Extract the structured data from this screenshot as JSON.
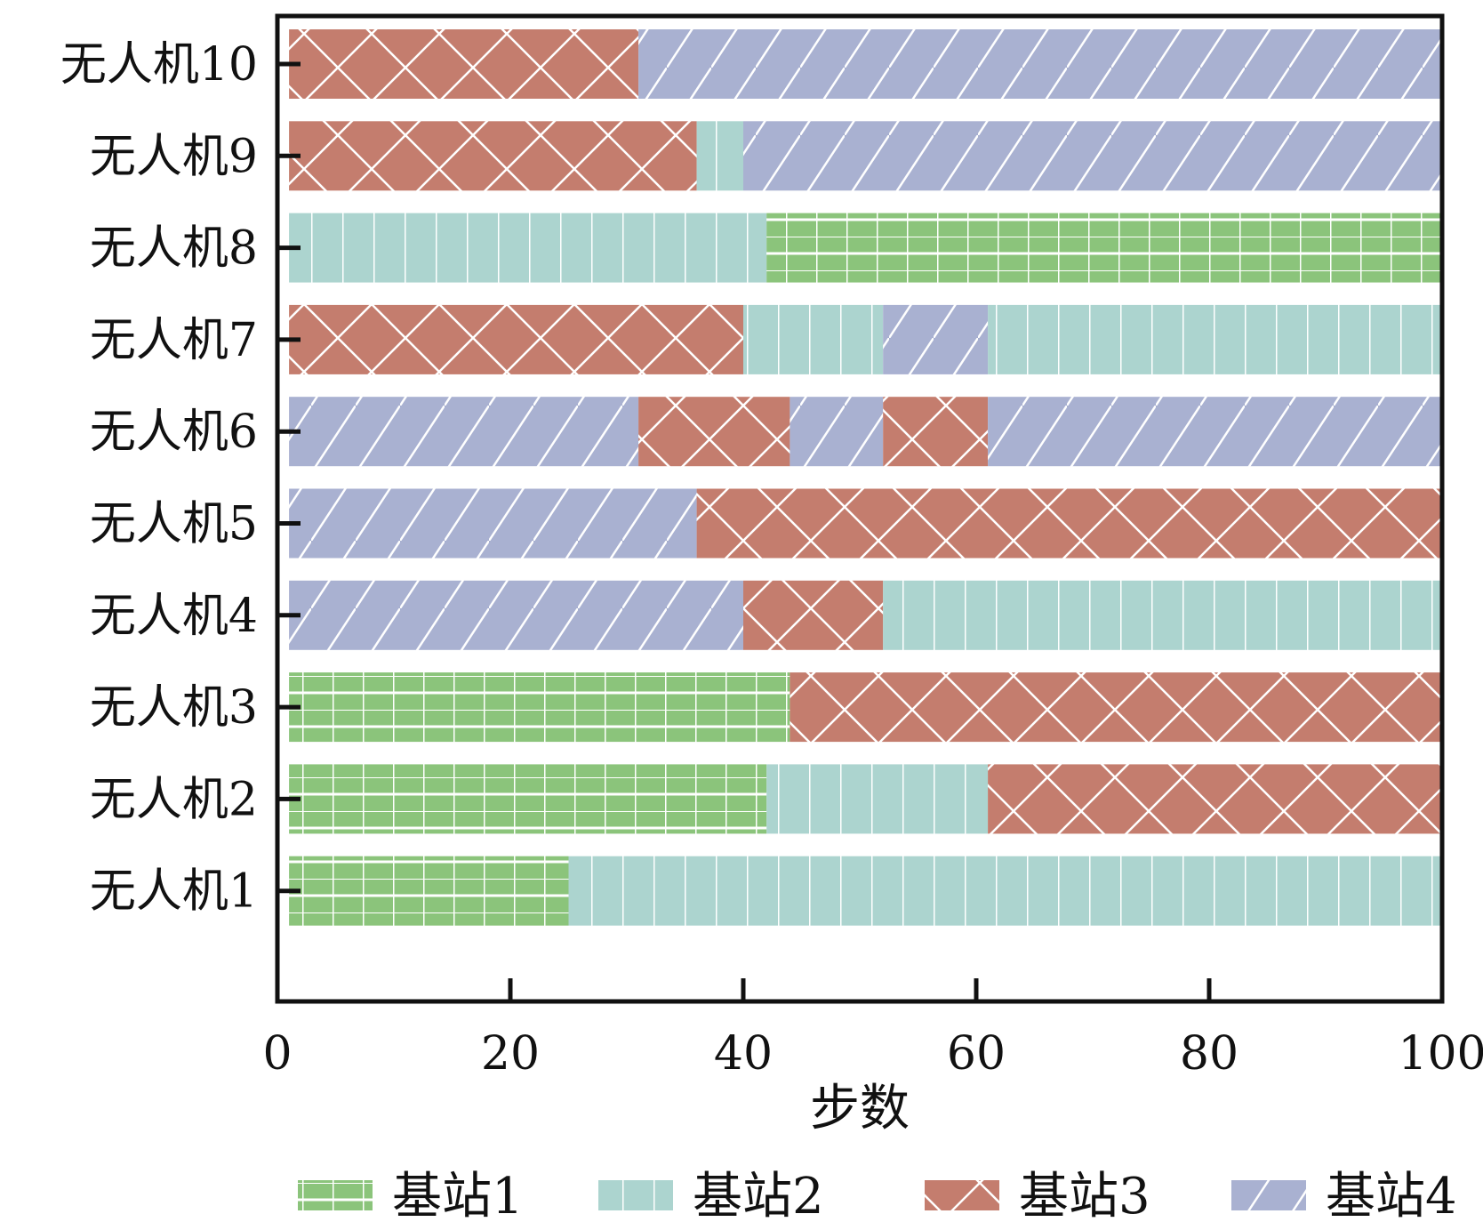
{
  "chart_data": {
    "type": "bar",
    "orientation": "horizontal-stacked",
    "xlabel": "步数",
    "ylabel": "",
    "xlim": [
      0,
      100
    ],
    "xticks": [
      0,
      20,
      40,
      60,
      80,
      100
    ],
    "xtick_labels": [
      "0",
      "20",
      "40",
      "60",
      "80",
      "100"
    ],
    "categories": [
      "无人机1",
      "无人机2",
      "无人机3",
      "无人机4",
      "无人机5",
      "无人机6",
      "无人机7",
      "无人机8",
      "无人机9",
      "无人机10"
    ],
    "series": [
      {
        "name": "基站1",
        "color": "#8bc47b",
        "pattern": "grid"
      },
      {
        "name": "基站2",
        "color": "#acd4cf",
        "pattern": "vertical"
      },
      {
        "name": "基站3",
        "color": "#c47d6e",
        "pattern": "cross"
      },
      {
        "name": "基站4",
        "color": "#a9b1d1",
        "pattern": "diagonal"
      }
    ],
    "segments": [
      [
        {
          "station": "基站1",
          "start": 1,
          "end": 25
        },
        {
          "station": "基站2",
          "start": 25,
          "end": 100
        }
      ],
      [
        {
          "station": "基站1",
          "start": 1,
          "end": 42
        },
        {
          "station": "基站2",
          "start": 42,
          "end": 61
        },
        {
          "station": "基站3",
          "start": 61,
          "end": 100
        }
      ],
      [
        {
          "station": "基站1",
          "start": 1,
          "end": 44
        },
        {
          "station": "基站3",
          "start": 44,
          "end": 100
        }
      ],
      [
        {
          "station": "基站4",
          "start": 1,
          "end": 40
        },
        {
          "station": "基站3",
          "start": 40,
          "end": 52
        },
        {
          "station": "基站2",
          "start": 52,
          "end": 100
        }
      ],
      [
        {
          "station": "基站4",
          "start": 1,
          "end": 36
        },
        {
          "station": "基站3",
          "start": 36,
          "end": 100
        }
      ],
      [
        {
          "station": "基站4",
          "start": 1,
          "end": 31
        },
        {
          "station": "基站3",
          "start": 31,
          "end": 44
        },
        {
          "station": "基站4",
          "start": 44,
          "end": 52
        },
        {
          "station": "基站3",
          "start": 52,
          "end": 61
        },
        {
          "station": "基站4",
          "start": 61,
          "end": 100
        }
      ],
      [
        {
          "station": "基站3",
          "start": 1,
          "end": 40
        },
        {
          "station": "基站2",
          "start": 40,
          "end": 52
        },
        {
          "station": "基站4",
          "start": 52,
          "end": 61
        },
        {
          "station": "基站2",
          "start": 61,
          "end": 100
        }
      ],
      [
        {
          "station": "基站2",
          "start": 1,
          "end": 42
        },
        {
          "station": "基站1",
          "start": 42,
          "end": 100
        }
      ],
      [
        {
          "station": "基站3",
          "start": 1,
          "end": 36
        },
        {
          "station": "基站2",
          "start": 36,
          "end": 40
        },
        {
          "station": "基站4",
          "start": 40,
          "end": 100
        }
      ],
      [
        {
          "station": "基站3",
          "start": 1,
          "end": 31
        },
        {
          "station": "基站4",
          "start": 31,
          "end": 100
        }
      ]
    ],
    "legend_position": "bottom",
    "grid": false
  }
}
